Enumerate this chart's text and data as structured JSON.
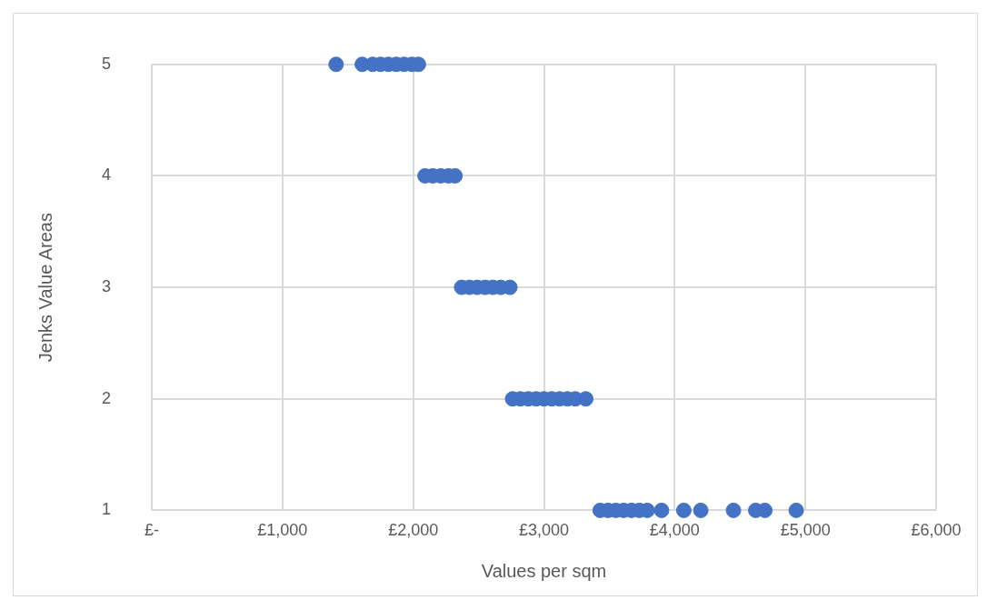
{
  "chart_data": {
    "type": "scatter",
    "xlabel": "Values per sqm",
    "ylabel": "Jenks Value Areas",
    "x": [
      1410,
      1610,
      1690,
      1750,
      1810,
      1870,
      1930,
      1990,
      2040,
      2090,
      2150,
      2210,
      2270,
      2320,
      2370,
      2430,
      2490,
      2550,
      2610,
      2670,
      2740,
      2760,
      2820,
      2880,
      2940,
      3000,
      3060,
      3120,
      3180,
      3240,
      3320,
      3430,
      3490,
      3550,
      3610,
      3670,
      3730,
      3790,
      3900,
      4070,
      4200,
      4450,
      4620,
      4690,
      4930
    ],
    "series": [
      {
        "color": "#4472c4",
        "values": [
          5,
          5,
          5,
          5,
          5,
          5,
          5,
          5,
          5,
          4,
          4,
          4,
          4,
          4,
          3,
          3,
          3,
          3,
          3,
          3,
          3,
          2,
          2,
          2,
          2,
          2,
          2,
          2,
          2,
          2,
          2,
          1,
          1,
          1,
          1,
          1,
          1,
          1,
          1,
          1,
          1,
          1,
          1,
          1,
          1
        ]
      }
    ],
    "xlim": [
      0,
      6000
    ],
    "xticks": [
      {
        "value": 0,
        "label": "£-"
      },
      {
        "value": 1000,
        "label": "£1,000"
      },
      {
        "value": 2000,
        "label": "£2,000"
      },
      {
        "value": 3000,
        "label": "£3,000"
      },
      {
        "value": 4000,
        "label": "£4,000"
      },
      {
        "value": 5000,
        "label": "£5,000"
      },
      {
        "value": 6000,
        "label": "£6,000"
      }
    ],
    "ylim": [
      1,
      5
    ],
    "yticks": [
      1,
      2,
      3,
      4,
      5
    ],
    "grid": true,
    "legend": false,
    "marker": "circle"
  }
}
